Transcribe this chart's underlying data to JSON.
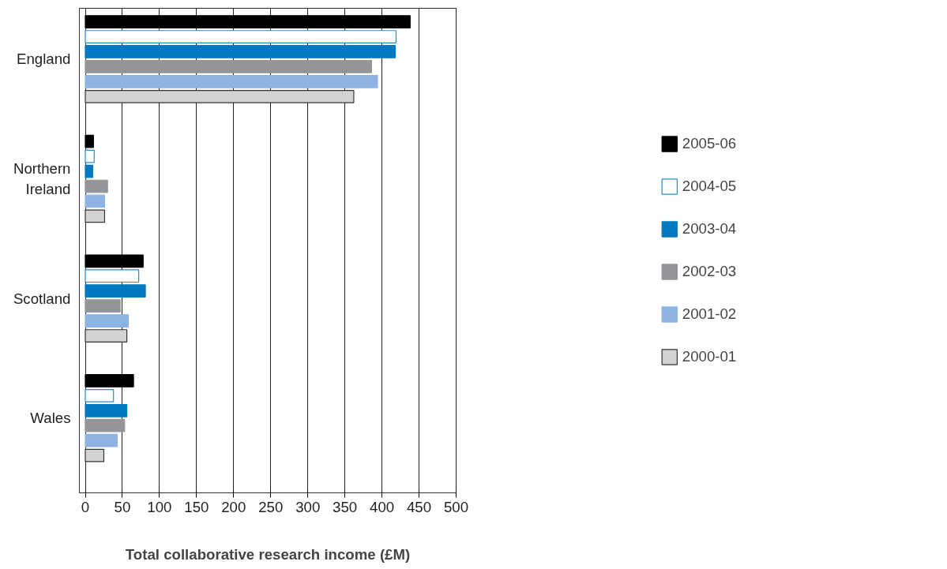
{
  "chart_data": {
    "type": "bar",
    "orientation": "horizontal",
    "xlabel": "Total collaborative research income (£M)",
    "categories": [
      "England",
      "Northern\nIreland",
      "Scotland",
      "Wales"
    ],
    "series": [
      {
        "name": "2005-06",
        "color": "#000000",
        "values": [
          438,
          11,
          78,
          65
        ]
      },
      {
        "name": "2004-05",
        "color": "#ffffff",
        "values": [
          419,
          12,
          72,
          38
        ]
      },
      {
        "name": "2003-04",
        "color": "#0079c1",
        "values": [
          418,
          10,
          81,
          56
        ]
      },
      {
        "name": "2002-03",
        "color": "#939598",
        "values": [
          386,
          30,
          47,
          53
        ]
      },
      {
        "name": "2001-02",
        "color": "#8db3e2",
        "values": [
          394,
          26,
          58,
          43
        ]
      },
      {
        "name": "2000-01",
        "color": "#d1d3d4",
        "values": [
          362,
          26,
          56,
          25
        ]
      }
    ],
    "xlim": [
      -8,
      500
    ],
    "xticks": [
      0,
      50,
      100,
      150,
      200,
      250,
      300,
      350,
      400,
      450,
      500
    ],
    "grid": "x",
    "legend": "right"
  }
}
